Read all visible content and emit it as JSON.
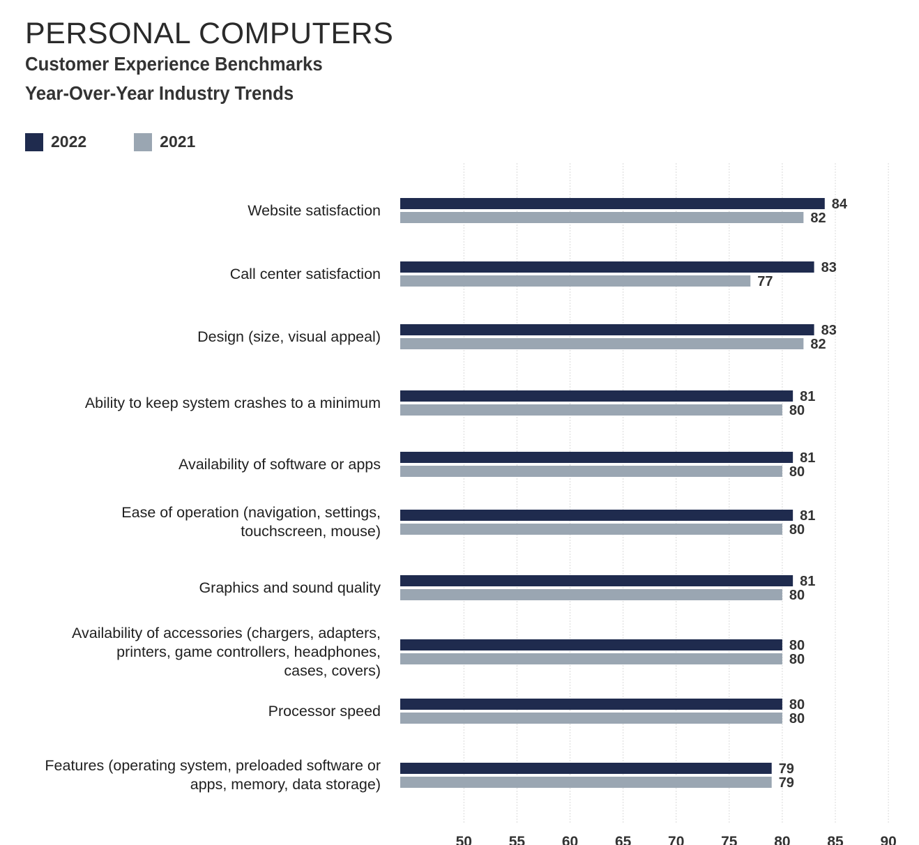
{
  "header": {
    "title": "PERSONAL COMPUTERS",
    "subtitle_line1": "Customer Experience Benchmarks",
    "subtitle_line2": "Year-Over-Year Industry Trends"
  },
  "colors": {
    "series_2022": "#1f2b4e",
    "series_2021": "#9aa6b2",
    "gridline": "#d9d9d9"
  },
  "legend": {
    "items": [
      {
        "label": "2022",
        "color": "#1f2b4e"
      },
      {
        "label": "2021",
        "color": "#9aa6b2"
      }
    ]
  },
  "chart_data": {
    "type": "bar",
    "orientation": "horizontal",
    "title": "PERSONAL COMPUTERS",
    "subtitle": "Customer Experience Benchmarks Year-Over-Year Industry Trends",
    "categories": [
      "Website satisfaction",
      "Call center satisfaction",
      "Design (size, visual appeal)",
      "Ability to keep system crashes to a minimum",
      "Availability of software or apps",
      "Ease of operation (navigation, settings,\ntouchscreen, mouse)",
      "Graphics and sound quality",
      "Availability of accessories (chargers, adapters,\nprinters, game controllers, headphones,\ncases, covers)",
      "Processor speed",
      "Features (operating system, preloaded software or\napps, memory, data storage)"
    ],
    "series": [
      {
        "name": "2022",
        "values": [
          84,
          83,
          83,
          81,
          81,
          81,
          81,
          80,
          80,
          79
        ]
      },
      {
        "name": "2021",
        "values": [
          82,
          77,
          82,
          80,
          80,
          80,
          80,
          80,
          80,
          79
        ]
      }
    ],
    "xlim": [
      44,
      90
    ],
    "xticks": [
      50,
      55,
      60,
      65,
      70,
      75,
      80,
      85,
      90
    ],
    "grid": true,
    "legend_position": "top-left",
    "xlabel": "",
    "ylabel": ""
  }
}
